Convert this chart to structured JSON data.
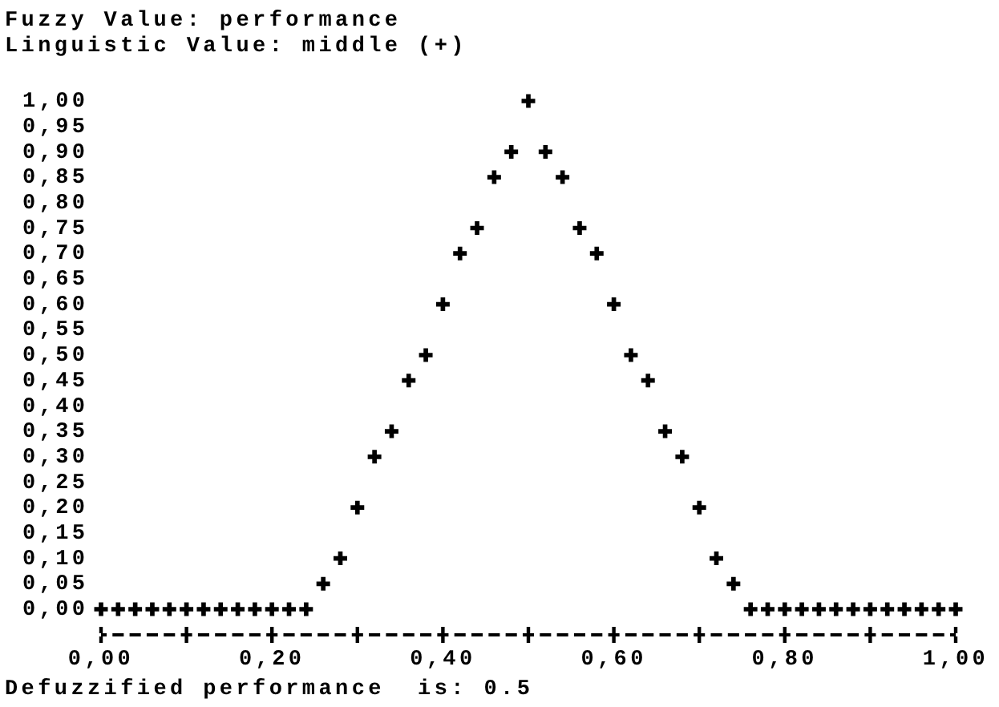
{
  "chart_data": {
    "type": "scatter",
    "title": "Fuzzy Value: performance",
    "subtitle": "Linguistic Value: middle (+)",
    "annotations": [
      "Defuzzified performance  is: 0.5"
    ],
    "x": [
      0,
      0.02,
      0.04,
      0.06,
      0.08,
      0.1,
      0.12,
      0.14,
      0.16,
      0.18,
      0.2,
      0.22,
      0.24,
      0.26,
      0.28,
      0.3,
      0.32,
      0.34,
      0.36,
      0.38,
      0.4,
      0.42,
      0.44,
      0.46,
      0.48,
      0.5,
      0.52,
      0.54,
      0.56,
      0.58,
      0.6,
      0.62,
      0.64,
      0.66,
      0.68,
      0.7,
      0.72,
      0.74,
      0.76,
      0.78,
      0.8,
      0.82,
      0.84,
      0.86,
      0.88,
      0.9,
      0.92,
      0.94,
      0.96,
      0.98,
      1
    ],
    "values": [
      0,
      0,
      0,
      0,
      0,
      0,
      0,
      0,
      0,
      0,
      0,
      0,
      0,
      0.05,
      0.1,
      0.2,
      0.3,
      0.35,
      0.45,
      0.5,
      0.6,
      0.7,
      0.75,
      0.85,
      0.9,
      1,
      0.9,
      0.85,
      0.75,
      0.7,
      0.6,
      0.5,
      0.45,
      0.35,
      0.3,
      0.2,
      0.1,
      0.05,
      0,
      0,
      0,
      0,
      0,
      0,
      0,
      0,
      0,
      0,
      0,
      0,
      0
    ],
    "color": "#000000",
    "marker": "cross",
    "xlim": [
      0,
      1
    ],
    "xticks": [
      {
        "value": 0,
        "label": "0,00"
      },
      {
        "value": 0.1,
        "label": null
      },
      {
        "value": 0.2,
        "label": "0,20"
      },
      {
        "value": 0.3,
        "label": null
      },
      {
        "value": 0.4,
        "label": "0,40"
      },
      {
        "value": 0.5,
        "label": null
      },
      {
        "value": 0.6,
        "label": "0,60"
      },
      {
        "value": 0.7,
        "label": null
      },
      {
        "value": 0.8,
        "label": "0,80"
      },
      {
        "value": 0.9,
        "label": null
      },
      {
        "value": 1,
        "label": "1,00"
      }
    ],
    "ylim": [
      0,
      1
    ],
    "yticks": [
      {
        "value": 0,
        "label": "0,00"
      },
      {
        "value": 0.05,
        "label": "0,05"
      },
      {
        "value": 0.1,
        "label": "0,10"
      },
      {
        "value": 0.15,
        "label": "0,15"
      },
      {
        "value": 0.2,
        "label": "0,20"
      },
      {
        "value": 0.25,
        "label": "0,25"
      },
      {
        "value": 0.3,
        "label": "0,30"
      },
      {
        "value": 0.35,
        "label": "0,35"
      },
      {
        "value": 0.4,
        "label": "0,40"
      },
      {
        "value": 0.45,
        "label": "0,45"
      },
      {
        "value": 0.5,
        "label": "0,50"
      },
      {
        "value": 0.55,
        "label": "0,55"
      },
      {
        "value": 0.6,
        "label": "0,60"
      },
      {
        "value": 0.65,
        "label": "0,65"
      },
      {
        "value": 0.7,
        "label": "0,70"
      },
      {
        "value": 0.75,
        "label": "0,75"
      },
      {
        "value": 0.8,
        "label": "0,80"
      },
      {
        "value": 0.85,
        "label": "0,85"
      },
      {
        "value": 0.9,
        "label": "0,90"
      },
      {
        "value": 0.95,
        "label": "0,95"
      },
      {
        "value": 1,
        "label": "1,00"
      }
    ]
  }
}
